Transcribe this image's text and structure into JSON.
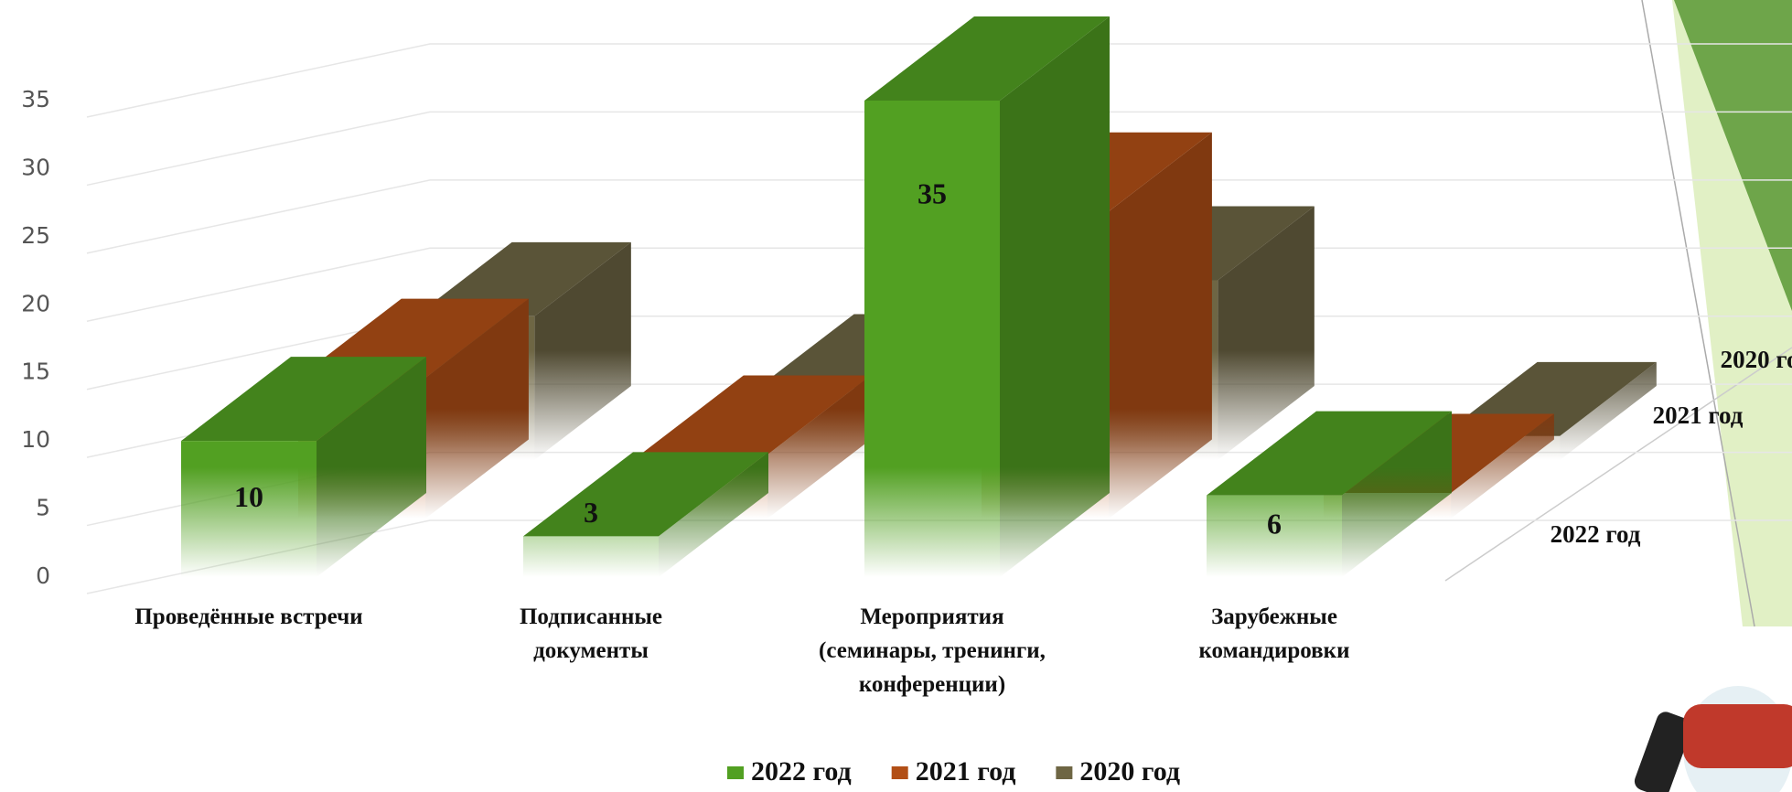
{
  "chart_data": {
    "type": "bar3d",
    "categories": [
      [
        "Проведённые встречи"
      ],
      [
        "Подписанные",
        "документы"
      ],
      [
        "Мероприятия",
        "(семинары, тренинги,",
        "конференции)"
      ],
      [
        "Зарубежные",
        "командировки"
      ]
    ],
    "series": [
      {
        "name": "2022 год",
        "color": "#52a022",
        "values": [
          10,
          3,
          35,
          6
        ]
      },
      {
        "name": "2021 год",
        "color": "#b24f16",
        "values": [
          11,
          5,
          24,
          2
        ]
      },
      {
        "name": "2020 год",
        "color": "#6e6644",
        "values": [
          12,
          6,
          15,
          2
        ]
      }
    ],
    "ylim": [
      0,
      35
    ],
    "yticks": [
      0,
      5,
      10,
      15,
      20,
      25,
      30,
      35
    ],
    "grid": true
  }
}
